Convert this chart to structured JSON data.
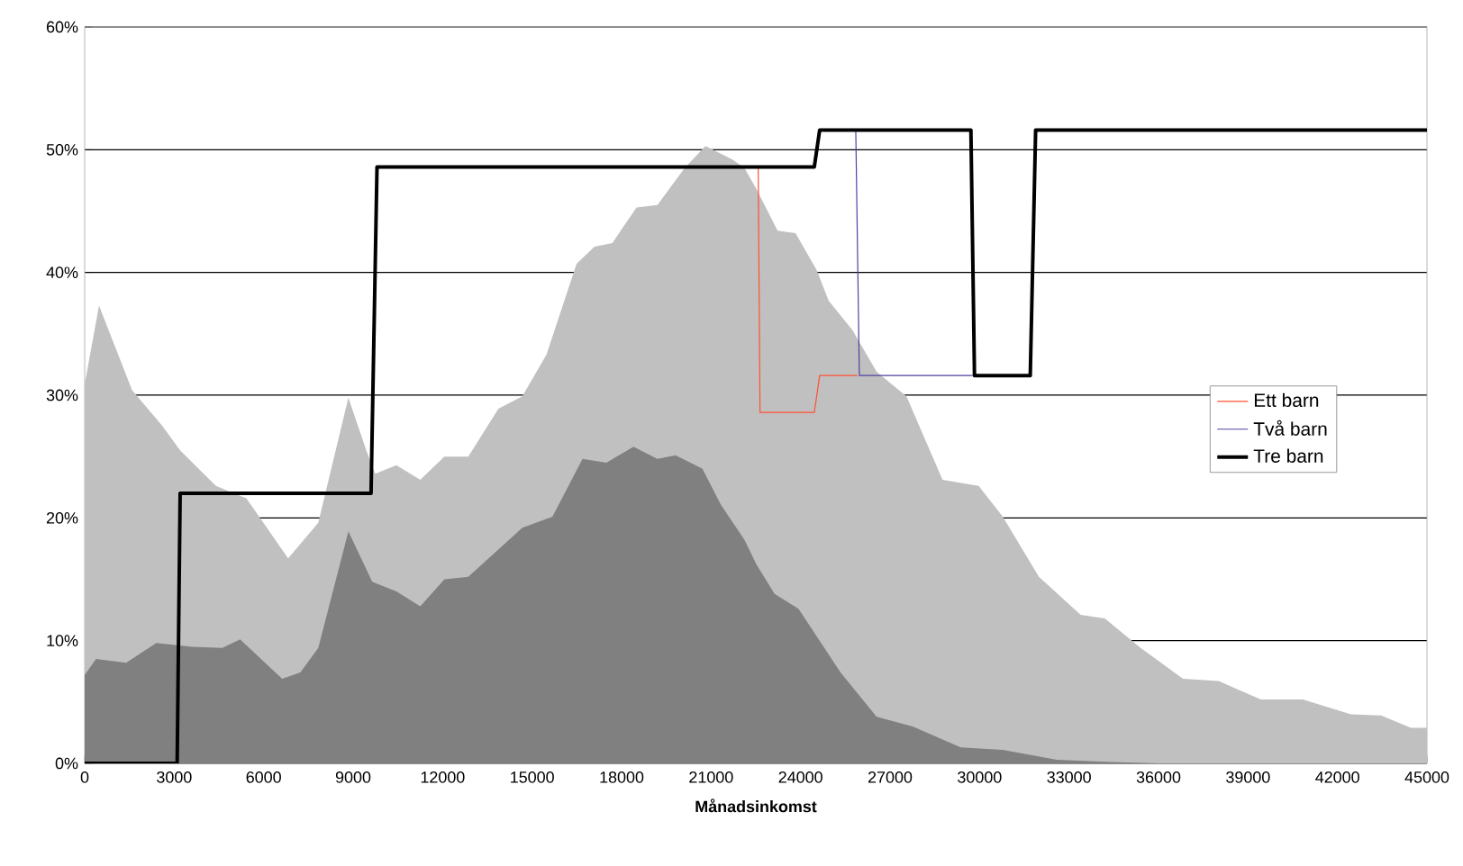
{
  "chart_data": {
    "type": "area",
    "xlabel": "Månadsinkomst",
    "xlim": [
      0,
      45000
    ],
    "ylim": [
      0,
      60
    ],
    "xticks": [
      0,
      3000,
      6000,
      9000,
      12000,
      15000,
      18000,
      21000,
      24000,
      27000,
      30000,
      33000,
      36000,
      39000,
      42000,
      45000
    ],
    "yticks": [
      {
        "value": 0,
        "label": "0%"
      },
      {
        "value": 10,
        "label": "10%"
      },
      {
        "value": 20,
        "label": "20%"
      },
      {
        "value": 30,
        "label": "30%"
      },
      {
        "value": 40,
        "label": "40%"
      },
      {
        "value": 50,
        "label": "50%"
      },
      {
        "value": 60,
        "label": "60%"
      }
    ],
    "grid": "y",
    "legend": "right",
    "series": [
      {
        "color": "#c0c0c0",
        "x": [
          0,
          480,
          1590,
          2600,
          3200,
          4400,
          5420,
          6820,
          7830,
          8840,
          9440,
          9740,
          10450,
          11250,
          12060,
          12860,
          13870,
          14670,
          15480,
          16490,
          17090,
          17690,
          18500,
          19200,
          20110,
          20810,
          21720,
          22120,
          22520,
          23230,
          23830,
          24540,
          24940,
          25740,
          26550,
          27550,
          28760,
          29970,
          30780,
          31990,
          33390,
          34200,
          35400,
          36820,
          38020,
          39430,
          40840,
          42450,
          43460,
          44460,
          45000
        ],
        "values": [
          30.9,
          37.3,
          30.4,
          27.5,
          25.5,
          22.6,
          21.6,
          16.7,
          19.6,
          29.8,
          25.5,
          23.6,
          24.3,
          23.1,
          25.0,
          25.0,
          28.9,
          29.9,
          33.3,
          40.7,
          42.1,
          42.4,
          45.3,
          45.5,
          48.5,
          50.3,
          49.2,
          48.5,
          46.8,
          43.4,
          43.2,
          40.2,
          37.7,
          35.3,
          31.9,
          29.9,
          23.1,
          22.6,
          20.1,
          15.2,
          12.1,
          11.8,
          9.4,
          6.9,
          6.7,
          5.2,
          5.2,
          4.0,
          3.9,
          2.9,
          2.9
        ]
      },
      {
        "color": "#808080",
        "x": [
          0,
          380,
          1390,
          2400,
          3600,
          4610,
          5210,
          6620,
          7230,
          7830,
          8840,
          9640,
          10450,
          11250,
          12060,
          12860,
          14670,
          15680,
          16690,
          17490,
          18400,
          19200,
          19810,
          20710,
          21320,
          22120,
          22520,
          23130,
          23930,
          25340,
          26550,
          27760,
          29370,
          30780,
          32590,
          34400,
          36000,
          45000
        ],
        "values": [
          7.2,
          8.5,
          8.2,
          9.8,
          9.5,
          9.4,
          10.1,
          6.9,
          7.4,
          9.4,
          18.9,
          14.8,
          14.0,
          12.8,
          15.0,
          15.2,
          19.2,
          20.1,
          24.8,
          24.5,
          25.8,
          24.8,
          25.1,
          24.0,
          21.1,
          18.2,
          16.2,
          13.8,
          12.6,
          7.4,
          3.8,
          3.0,
          1.3,
          1.1,
          0.3,
          0.1,
          0,
          0
        ]
      },
      {
        "type": "line",
        "name": "Ett barn",
        "color": "#ff5030",
        "x": [
          22580,
          22640,
          24460,
          24640,
          25900
        ],
        "values": [
          48.6,
          28.6,
          28.6,
          31.6,
          31.6
        ]
      },
      {
        "type": "line",
        "name": "Två barn",
        "color": "#5040a0",
        "x": [
          25850,
          25970,
          29770
        ],
        "values": [
          51.6,
          31.6,
          31.6
        ]
      },
      {
        "type": "line",
        "name": "Tre barn",
        "color": "#000000",
        "x": [
          0,
          3100,
          3200,
          9600,
          9800,
          24460,
          24640,
          29710,
          29830,
          31700,
          31880,
          45000
        ],
        "values": [
          0,
          0,
          22,
          22,
          48.6,
          48.6,
          51.6,
          51.6,
          31.6,
          31.6,
          51.6,
          51.6
        ]
      }
    ]
  }
}
